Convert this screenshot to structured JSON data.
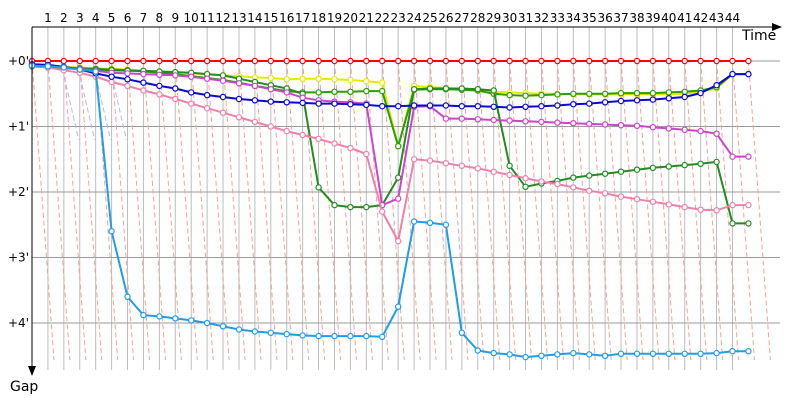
{
  "chart_data": {
    "type": "line",
    "x_title": "Time",
    "y_title": "Gap",
    "x_ticks": [
      "1",
      "2",
      "3",
      "4",
      "5",
      "6",
      "7",
      "8",
      "9",
      "10",
      "11",
      "12",
      "13",
      "14",
      "15",
      "16",
      "17",
      "18",
      "19",
      "20",
      "21",
      "22",
      "23",
      "24",
      "25",
      "26",
      "27",
      "28",
      "29",
      "30",
      "31",
      "32",
      "33",
      "34",
      "35",
      "36",
      "37",
      "38",
      "39",
      "40",
      "41",
      "42",
      "43",
      "44"
    ],
    "y_ticks": [
      "+0'",
      "+1'",
      "+2'",
      "+3'",
      "+4'"
    ],
    "ylim_minutes": [
      0,
      4.6
    ],
    "x_range_laps": [
      0,
      45.5
    ],
    "grid": true,
    "y_inverted": true,
    "series": [
      {
        "color": "#ff0000",
        "x": [
          0,
          1,
          2,
          3,
          4,
          5,
          6,
          7,
          8,
          9,
          10,
          11,
          12,
          13,
          14,
          15,
          16,
          17,
          18,
          19,
          20,
          21,
          22,
          23,
          24,
          25,
          26,
          27,
          28,
          29,
          30,
          31,
          32,
          33,
          34,
          35,
          36,
          37,
          38,
          39,
          40,
          41,
          42,
          43,
          44,
          45
        ],
        "y": [
          0,
          0,
          0,
          0,
          0,
          0,
          0,
          0,
          0,
          0,
          0,
          0,
          0,
          0,
          0,
          0,
          0,
          0,
          0,
          0,
          0,
          0,
          0,
          0,
          0,
          0,
          0,
          0,
          0,
          0,
          0,
          0,
          0,
          0,
          0,
          0,
          0,
          0,
          0,
          0,
          0,
          0,
          0,
          0,
          0,
          0
        ]
      },
      {
        "color": "#e8e800",
        "x": [
          0,
          1,
          2,
          3,
          4,
          5,
          6,
          7,
          8,
          9,
          10,
          11,
          12,
          13,
          14,
          15,
          16,
          17,
          18,
          19,
          20,
          21,
          22,
          23,
          24,
          25,
          26,
          27,
          28,
          29,
          30,
          31,
          32,
          33,
          34,
          35,
          36,
          37,
          38,
          39,
          40,
          41,
          42,
          43,
          44,
          45
        ],
        "y": [
          0.08,
          0.08,
          0.09,
          0.1,
          0.11,
          0.12,
          0.13,
          0.15,
          0.16,
          0.17,
          0.19,
          0.2,
          0.22,
          0.23,
          0.25,
          0.26,
          0.28,
          0.27,
          0.27,
          0.28,
          0.29,
          0.31,
          0.33,
          1.3,
          0.38,
          0.4,
          0.41,
          0.43,
          0.45,
          0.47,
          0.48,
          0.49,
          0.5,
          0.5,
          0.51,
          0.51,
          0.51,
          0.51,
          0.51,
          0.51,
          0.51,
          0.5,
          0.47,
          0.42,
          0.2,
          0.2
        ]
      },
      {
        "color": "#2aa000",
        "x": [
          0,
          1,
          2,
          3,
          4,
          5,
          6,
          7,
          8,
          9,
          10,
          11,
          12,
          13,
          14,
          15,
          16,
          17,
          18,
          19,
          20,
          21,
          22,
          23,
          24,
          25,
          26,
          27,
          28,
          29,
          30,
          31,
          32,
          33,
          34,
          35,
          36,
          37,
          38,
          39,
          40,
          41,
          42,
          43,
          44,
          45
        ],
        "y": [
          0.08,
          0.09,
          0.1,
          0.11,
          0.12,
          0.13,
          0.14,
          0.16,
          0.18,
          0.2,
          0.23,
          0.26,
          0.29,
          0.33,
          0.38,
          0.42,
          0.46,
          0.48,
          0.48,
          0.47,
          0.47,
          0.46,
          0.46,
          1.3,
          0.44,
          0.43,
          0.43,
          0.44,
          0.45,
          0.5,
          0.52,
          0.53,
          0.52,
          0.51,
          0.5,
          0.5,
          0.5,
          0.49,
          0.49,
          0.49,
          0.48,
          0.47,
          0.45,
          0.4,
          0.2,
          0.2
        ]
      },
      {
        "color": "#228b22",
        "x": [
          0,
          1,
          2,
          3,
          4,
          5,
          6,
          7,
          8,
          9,
          10,
          11,
          12,
          13,
          14,
          15,
          16,
          17,
          18,
          19,
          20,
          21,
          22,
          23,
          24,
          25,
          26,
          27,
          28,
          29,
          30,
          31,
          32,
          33,
          34,
          35,
          36,
          37,
          38,
          39,
          40,
          41,
          42,
          43,
          44,
          45
        ],
        "y": [
          0.08,
          0.1,
          0.11,
          0.12,
          0.13,
          0.14,
          0.15,
          0.15,
          0.16,
          0.17,
          0.18,
          0.2,
          0.22,
          0.27,
          0.32,
          0.37,
          0.42,
          0.5,
          1.93,
          2.2,
          2.23,
          2.23,
          2.2,
          1.78,
          0.43,
          0.42,
          0.42,
          0.42,
          0.43,
          0.45,
          1.6,
          1.92,
          1.87,
          1.83,
          1.78,
          1.75,
          1.72,
          1.69,
          1.66,
          1.63,
          1.61,
          1.59,
          1.57,
          1.54,
          2.48,
          2.48
        ]
      },
      {
        "color": "#cc44cc",
        "x": [
          0,
          1,
          2,
          3,
          4,
          5,
          6,
          7,
          8,
          9,
          10,
          11,
          12,
          13,
          14,
          15,
          16,
          17,
          18,
          19,
          20,
          21,
          22,
          23,
          24,
          25,
          26,
          27,
          28,
          29,
          30,
          31,
          32,
          33,
          34,
          35,
          36,
          37,
          38,
          39,
          40,
          41,
          42,
          43,
          44,
          45
        ],
        "y": [
          0.07,
          0.08,
          0.1,
          0.12,
          0.15,
          0.18,
          0.19,
          0.2,
          0.21,
          0.22,
          0.24,
          0.27,
          0.3,
          0.34,
          0.38,
          0.43,
          0.48,
          0.56,
          0.6,
          0.62,
          0.63,
          0.65,
          2.2,
          2.1,
          0.7,
          0.69,
          0.88,
          0.88,
          0.89,
          0.9,
          0.91,
          0.92,
          0.93,
          0.94,
          0.95,
          0.96,
          0.97,
          0.98,
          0.99,
          1.01,
          1.03,
          1.05,
          1.07,
          1.11,
          1.46,
          1.46
        ]
      },
      {
        "color": "#f080a8",
        "x": [
          0,
          1,
          2,
          3,
          4,
          5,
          6,
          7,
          8,
          9,
          10,
          11,
          12,
          13,
          14,
          15,
          16,
          17,
          18,
          19,
          20,
          21,
          22,
          23,
          24,
          25,
          26,
          27,
          28,
          29,
          30,
          31,
          32,
          33,
          34,
          35,
          36,
          37,
          38,
          39,
          40,
          41,
          42,
          43,
          44,
          45
        ],
        "y": [
          0.07,
          0.1,
          0.14,
          0.18,
          0.24,
          0.32,
          0.38,
          0.45,
          0.51,
          0.58,
          0.65,
          0.72,
          0.79,
          0.86,
          0.93,
          1.0,
          1.07,
          1.13,
          1.19,
          1.26,
          1.33,
          1.42,
          2.3,
          2.75,
          1.5,
          1.52,
          1.56,
          1.6,
          1.64,
          1.69,
          1.74,
          1.79,
          1.84,
          1.88,
          1.93,
          1.98,
          2.02,
          2.07,
          2.11,
          2.15,
          2.19,
          2.23,
          2.27,
          2.28,
          2.2,
          2.2
        ]
      },
      {
        "color": "#0a0ad0",
        "x": [
          0,
          1,
          2,
          3,
          4,
          5,
          6,
          7,
          8,
          9,
          10,
          11,
          12,
          13,
          14,
          15,
          16,
          17,
          18,
          19,
          20,
          21,
          22,
          23,
          24,
          25,
          26,
          27,
          28,
          29,
          30,
          31,
          32,
          33,
          34,
          35,
          36,
          37,
          38,
          39,
          40,
          41,
          42,
          43,
          44,
          45
        ],
        "y": [
          0.05,
          0.06,
          0.09,
          0.13,
          0.19,
          0.24,
          0.28,
          0.33,
          0.38,
          0.42,
          0.48,
          0.52,
          0.55,
          0.58,
          0.6,
          0.62,
          0.63,
          0.64,
          0.65,
          0.65,
          0.66,
          0.67,
          0.69,
          0.69,
          0.68,
          0.68,
          0.68,
          0.69,
          0.69,
          0.7,
          0.71,
          0.7,
          0.69,
          0.68,
          0.66,
          0.65,
          0.63,
          0.61,
          0.6,
          0.59,
          0.57,
          0.55,
          0.49,
          0.37,
          0.2,
          0.2
        ]
      },
      {
        "color": "#1e9ee8",
        "x": [
          0,
          1,
          2,
          3,
          4,
          5,
          6,
          7,
          8,
          9,
          10,
          11,
          12,
          13,
          14,
          15,
          16,
          17,
          18,
          19,
          20,
          21,
          22,
          23,
          24,
          25,
          26,
          27,
          28,
          29,
          30,
          31,
          32,
          33,
          34,
          35,
          36,
          37,
          38,
          39,
          40,
          41,
          42,
          43,
          44,
          45
        ],
        "y": [
          0.07,
          0.08,
          0.1,
          0.13,
          0.16,
          2.6,
          3.6,
          3.88,
          3.9,
          3.93,
          3.96,
          4.0,
          4.05,
          4.1,
          4.13,
          4.15,
          4.17,
          4.19,
          4.2,
          4.2,
          4.2,
          4.2,
          4.21,
          3.75,
          2.45,
          2.47,
          2.5,
          4.15,
          4.42,
          4.46,
          4.48,
          4.52,
          4.5,
          4.48,
          4.46,
          4.48,
          4.5,
          4.47,
          4.47,
          4.47,
          4.47,
          4.47,
          4.47,
          4.46,
          4.43,
          4.43
        ]
      }
    ]
  }
}
